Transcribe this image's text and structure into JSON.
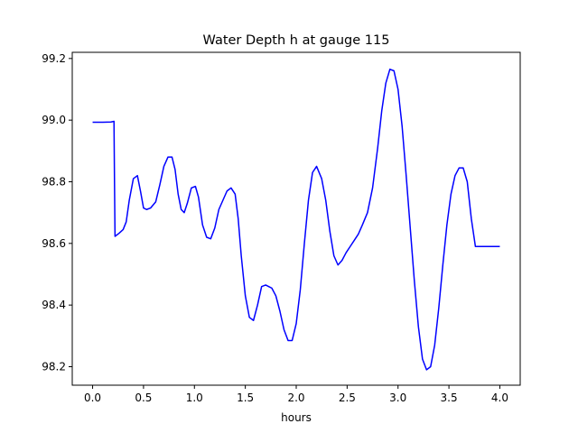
{
  "chart_data": {
    "type": "line",
    "title": "Water Depth h at gauge 115",
    "xlabel": "hours",
    "ylabel": "",
    "xlim": [
      -0.2,
      4.2
    ],
    "ylim": [
      98.14,
      99.22
    ],
    "x_ticks": [
      0.0,
      0.5,
      1.0,
      1.5,
      2.0,
      2.5,
      3.0,
      3.5,
      4.0
    ],
    "x_tick_labels": [
      "0.0",
      "0.5",
      "1.0",
      "1.5",
      "2.0",
      "2.5",
      "3.0",
      "3.5",
      "4.0"
    ],
    "y_ticks": [
      98.2,
      98.4,
      98.6,
      98.8,
      99.0,
      99.2
    ],
    "y_tick_labels": [
      "98.2",
      "98.4",
      "98.6",
      "98.8",
      "99.0",
      "99.2"
    ],
    "grid": false,
    "series": [
      {
        "name": "",
        "color": "#0000ff",
        "x": [
          0.0,
          0.1,
          0.18,
          0.21,
          0.215,
          0.22,
          0.26,
          0.3,
          0.33,
          0.36,
          0.4,
          0.44,
          0.47,
          0.5,
          0.53,
          0.57,
          0.62,
          0.66,
          0.7,
          0.74,
          0.78,
          0.81,
          0.84,
          0.87,
          0.9,
          0.93,
          0.97,
          1.01,
          1.04,
          1.08,
          1.12,
          1.16,
          1.2,
          1.24,
          1.28,
          1.32,
          1.36,
          1.4,
          1.43,
          1.46,
          1.5,
          1.54,
          1.58,
          1.62,
          1.66,
          1.7,
          1.73,
          1.76,
          1.8,
          1.84,
          1.88,
          1.92,
          1.96,
          2.0,
          2.04,
          2.08,
          2.12,
          2.16,
          2.2,
          2.25,
          2.29,
          2.33,
          2.37,
          2.41,
          2.45,
          2.49,
          2.53,
          2.57,
          2.61,
          2.65,
          2.7,
          2.75,
          2.8,
          2.84,
          2.88,
          2.92,
          2.96,
          3.0,
          3.04,
          3.08,
          3.12,
          3.16,
          3.2,
          3.24,
          3.28,
          3.32,
          3.36,
          3.4,
          3.44,
          3.48,
          3.52,
          3.56,
          3.6,
          3.64,
          3.68,
          3.72,
          3.76,
          3.8,
          3.84,
          3.88,
          3.91,
          3.94,
          3.97,
          4.0
        ],
        "y": [
          98.993,
          98.993,
          98.994,
          98.996,
          98.8,
          98.623,
          98.633,
          98.645,
          98.67,
          98.74,
          98.81,
          98.82,
          98.77,
          98.715,
          98.71,
          98.715,
          98.735,
          98.79,
          98.85,
          98.88,
          98.88,
          98.84,
          98.76,
          98.71,
          98.7,
          98.73,
          98.78,
          98.785,
          98.75,
          98.66,
          98.62,
          98.615,
          98.65,
          98.71,
          98.74,
          98.77,
          98.78,
          98.76,
          98.68,
          98.56,
          98.43,
          98.36,
          98.35,
          98.4,
          98.46,
          98.465,
          98.46,
          98.455,
          98.43,
          98.38,
          98.32,
          98.285,
          98.285,
          98.34,
          98.45,
          98.6,
          98.74,
          98.83,
          98.85,
          98.81,
          98.74,
          98.64,
          98.56,
          98.53,
          98.545,
          98.57,
          98.59,
          98.61,
          98.63,
          98.66,
          98.7,
          98.78,
          98.91,
          99.03,
          99.12,
          99.165,
          99.16,
          99.1,
          98.98,
          98.82,
          98.65,
          98.48,
          98.33,
          98.225,
          98.19,
          98.2,
          98.27,
          98.39,
          98.53,
          98.66,
          98.76,
          98.82,
          98.845,
          98.845,
          98.8,
          98.68,
          98.59,
          98.59,
          98.59,
          98.59,
          98.59,
          98.59,
          98.59,
          98.59
        ]
      }
    ]
  }
}
